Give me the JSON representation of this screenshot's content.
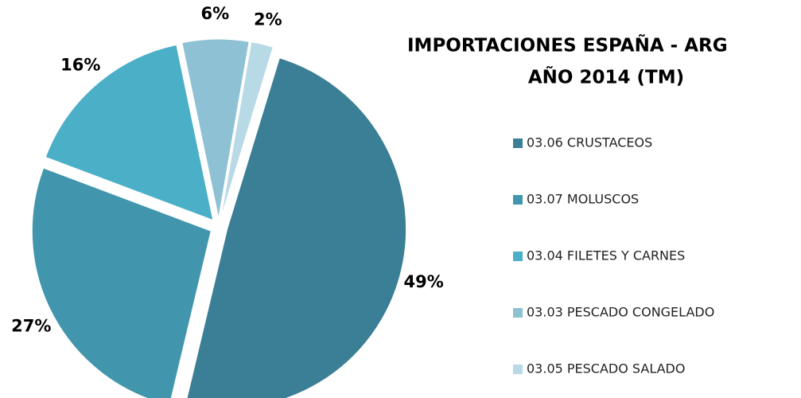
{
  "chart_data": {
    "type": "pie",
    "title": [
      "IMPORTACIONES ESPAÑA -  ARG",
      "AÑO 2014 (TM)"
    ],
    "categories": [
      "03.06 CRUSTACEOS",
      "03.07 MOLUSCOS",
      "03.04 FILETES Y CARNES",
      "03.03 PESCADO CONGELADO",
      "03.05 PESCADO SALADO"
    ],
    "values": [
      49,
      27,
      16,
      6,
      2
    ],
    "value_labels": [
      "49%",
      "27%",
      "16%",
      "6%",
      "2%"
    ],
    "colors": [
      "#3a7f95",
      "#4196ad",
      "#4bafc8",
      "#8fc1d4",
      "#b8d9e6"
    ],
    "legend": "right"
  }
}
